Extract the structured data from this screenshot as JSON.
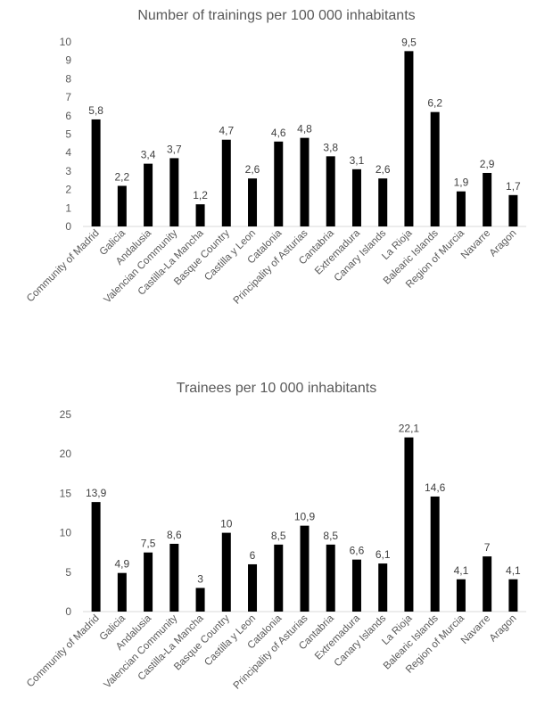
{
  "chart_data": [
    {
      "type": "bar",
      "title": "Number of trainings per 100 000 inhabitants",
      "xlabel": "",
      "ylabel": "",
      "categories": [
        "Community of Madrid",
        "Galicia",
        "Andalusia",
        "Valencian Community",
        "Castilla-La Mancha",
        "Basque Country",
        "Castilla y Leon",
        "Catalonia",
        "Principality of Asturias",
        "Cantabria",
        "Extremadura",
        "Canary Islands",
        "La Rioja",
        "Balearic Islands",
        "Region of Murcia",
        "Navarre",
        "Aragon"
      ],
      "values": [
        5.8,
        2.2,
        3.4,
        3.7,
        1.2,
        4.7,
        2.6,
        4.6,
        4.8,
        3.8,
        3.1,
        2.6,
        9.5,
        6.2,
        1.9,
        2.9,
        1.7
      ],
      "data_labels": [
        "5,8",
        "2,2",
        "3,4",
        "3,7",
        "1,2",
        "4,7",
        "2,6",
        "4,6",
        "4,8",
        "3,8",
        "3,1",
        "2,6",
        "9,5",
        "6,2",
        "1,9",
        "2,9",
        "1,7"
      ],
      "yticks": [
        0,
        1,
        2,
        3,
        4,
        5,
        6,
        7,
        8,
        9,
        10
      ],
      "ylim": [
        0,
        10
      ],
      "grid": false,
      "bar_color": "#000000"
    },
    {
      "type": "bar",
      "title": "Trainees per 10 000 inhabitants",
      "xlabel": "",
      "ylabel": "",
      "categories": [
        "Community of Madrid",
        "Galicia",
        "Andalusia",
        "Valencian Community",
        "Castilla-La Mancha",
        "Basque Country",
        "Castilla y Leon",
        "Catalonia",
        "Principality of Asturias",
        "Cantabria",
        "Extremadura",
        "Canary Islands",
        "La Rioja",
        "Balearic Islands",
        "Region of Murcia",
        "Navarre",
        "Aragon"
      ],
      "values": [
        13.9,
        4.9,
        7.5,
        8.6,
        3,
        10,
        6,
        8.5,
        10.9,
        8.5,
        6.6,
        6.1,
        22.1,
        14.6,
        4.1,
        7,
        4.1
      ],
      "data_labels": [
        "13,9",
        "4,9",
        "7,5",
        "8,6",
        "3",
        "10",
        "6",
        "8,5",
        "10,9",
        "8,5",
        "6,6",
        "6,1",
        "22,1",
        "14,6",
        "4,1",
        "7",
        "4,1"
      ],
      "yticks": [
        0,
        5,
        10,
        15,
        20,
        25
      ],
      "ylim": [
        0,
        25
      ],
      "grid": false,
      "bar_color": "#000000"
    }
  ]
}
